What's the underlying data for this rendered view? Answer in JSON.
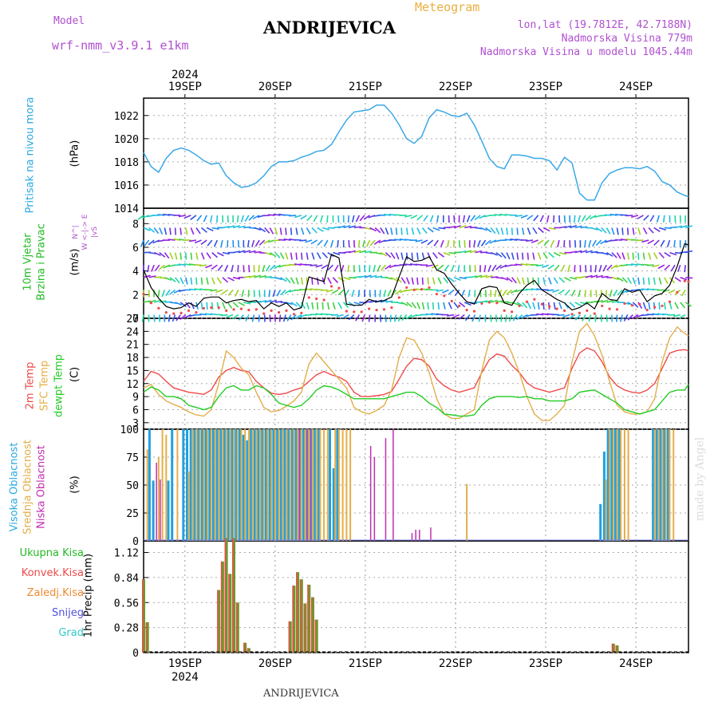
{
  "header": {
    "model_label": "Model",
    "model_name": "wrf-nmm_v3.9.1 e1km",
    "title": "ANDRIJEVICA",
    "meteogram_label": "Meteogram",
    "lonlat": "lon,lat (19.7812E, 42.7188N)",
    "elevation": "Nadmorska Visina 779m",
    "model_elevation": "Nadmorska Visina u modelu 1045.44m",
    "footer_title": "ANDRIJEVICA",
    "watermark": "made by Angel"
  },
  "colors": {
    "pressure": "#3aa8e8",
    "temp2m": "#ef4a4a",
    "sfc": "#e3ae4a",
    "dewpt": "#22cc22",
    "high_cloud": "#22a0e0",
    "mid_cloud": "#e3ae4a",
    "low_cloud": "#c030b0",
    "total_rain": "#6a9a2a",
    "conv_rain": "#ef4a4a",
    "freezing": "#f08a30",
    "snow": "#5050e0",
    "hail": "#30c8c8",
    "wind_line": "#000000",
    "wind_dots": "#ef4a4a"
  },
  "axis": {
    "top_year": "2024",
    "bottom_year": "2024",
    "days": [
      "19SEP",
      "20SEP",
      "21SEP",
      "22SEP",
      "23SEP",
      "24SEP"
    ],
    "day_hours": [
      0,
      24,
      48,
      72,
      96,
      120
    ],
    "hour_range": [
      -11,
      134
    ]
  },
  "panel_labels": {
    "pressure": [
      "Pritisak na nivou mora",
      "(hPa)"
    ],
    "wind": [
      "10m Vjetar",
      "Brzina i Pravac",
      "(m/s)"
    ],
    "wind_compass": [
      "N",
      "^",
      "|",
      "W <-|-> E",
      "|",
      "v",
      "S"
    ],
    "temp": [
      "2m Temp",
      "SFC Temp",
      "dewpt Temp",
      "(C)"
    ],
    "cloud": [
      "Visoka Oblacnost",
      "Srednja Oblacnost",
      "Niska Oblacnost",
      "(%)"
    ],
    "precip_legend": [
      "Ukupna Kisa",
      "Konvek.Kisa",
      "Zaledj.Kisa",
      "Snijeg",
      "Grad"
    ],
    "precip_unit": "1hr Precip (mm)"
  },
  "chart_data": [
    {
      "type": "line",
      "name": "pressure",
      "ylabel": "(hPa)",
      "ylim": [
        1014,
        1023.5
      ],
      "yticks": [
        1014,
        1016,
        1018,
        1020,
        1022
      ],
      "x": [
        -11,
        -9,
        -7,
        -5,
        -3,
        -1,
        1,
        3,
        5,
        7,
        9,
        11,
        13,
        15,
        17,
        19,
        21,
        23,
        25,
        27,
        29,
        31,
        33,
        35,
        37,
        39,
        41,
        43,
        45,
        47,
        49,
        51,
        53,
        55,
        57,
        59,
        61,
        63,
        65,
        67,
        69,
        71,
        73,
        75,
        77,
        79,
        81,
        83,
        85,
        87,
        89,
        91,
        93,
        95,
        97,
        99,
        101,
        103,
        105,
        107,
        109,
        111,
        113,
        115,
        117,
        119,
        121,
        123,
        125,
        127,
        129,
        131,
        133,
        134
      ],
      "y": [
        1018.8,
        1017.6,
        1017.1,
        1018.3,
        1019,
        1019.2,
        1019,
        1018.6,
        1018.1,
        1017.8,
        1017.9,
        1016.8,
        1016.2,
        1015.8,
        1015.9,
        1016.2,
        1016.8,
        1017.6,
        1018,
        1018,
        1018.1,
        1018.4,
        1018.6,
        1018.9,
        1019,
        1019.5,
        1020.6,
        1021.6,
        1022.3,
        1022.4,
        1022.5,
        1022.9,
        1022.9,
        1022.2,
        1021.2,
        1020,
        1019.6,
        1020.2,
        1021.8,
        1022.5,
        1022.3,
        1022,
        1021.9,
        1022.2,
        1021.2,
        1019.8,
        1018.3,
        1017.6,
        1017.4,
        1018.6,
        1018.6,
        1018.5,
        1018.3,
        1018.3,
        1018.1,
        1017.3,
        1018.4,
        1017.9,
        1015.3,
        1014.7,
        1014.7,
        1016.2,
        1017,
        1017.3,
        1017.5,
        1017.5,
        1017.4,
        1017.6,
        1017.2,
        1016.3,
        1016,
        1015.4,
        1015.1,
        1015
      ]
    },
    {
      "type": "line",
      "name": "wind",
      "ylabel": "(m/s)",
      "ylim": [
        0,
        9.3
      ],
      "yticks": [
        0,
        2,
        4,
        6,
        8
      ],
      "x": [
        -11,
        -9,
        -7,
        -5,
        -3,
        -1,
        1,
        3,
        5,
        7,
        9,
        11,
        13,
        15,
        17,
        19,
        21,
        23,
        25,
        27,
        29,
        31,
        33,
        35,
        37,
        39,
        41,
        43,
        45,
        47,
        49,
        51,
        53,
        55,
        57,
        59,
        61,
        63,
        65,
        67,
        69,
        71,
        73,
        75,
        77,
        79,
        81,
        83,
        85,
        87,
        89,
        91,
        93,
        95,
        97,
        99,
        101,
        103,
        105,
        107,
        109,
        111,
        113,
        115,
        117,
        119,
        121,
        123,
        125,
        127,
        129,
        131,
        133,
        134
      ],
      "y": [
        4.1,
        2.6,
        1.7,
        1.0,
        0.8,
        0.9,
        1.3,
        1.0,
        1.7,
        1.8,
        1.8,
        1.3,
        1.5,
        1.6,
        1.4,
        1.5,
        0.8,
        1.3,
        1.0,
        1.3,
        0.7,
        0.9,
        3.5,
        3.3,
        3.1,
        5.4,
        5.1,
        1.2,
        1.1,
        1.1,
        1.6,
        1.4,
        1.5,
        1.8,
        3.5,
        5.2,
        4.8,
        4.9,
        5.2,
        4.1,
        3.8,
        2.9,
        2.1,
        1.4,
        1.2,
        2.5,
        2.7,
        2.6,
        1.3,
        1.1,
        2.1,
        2.8,
        3.2,
        2.4,
        2.0,
        1.6,
        1.3,
        0.7,
        0.9,
        1.3,
        0.8,
        2.1,
        1.6,
        1.5,
        2.5,
        2.2,
        2.4,
        1.4,
        1.9,
        2.1,
        2.8,
        4.4,
        6.3,
        6.2
      ]
    },
    {
      "type": "line",
      "name": "temperature",
      "ylabel": "(C)",
      "ylim": [
        1.5,
        27
      ],
      "yticks": [
        3,
        6,
        9,
        12,
        15,
        18,
        21,
        24,
        27
      ],
      "x": [
        -11,
        -9,
        -7,
        -5,
        -3,
        -1,
        1,
        3,
        5,
        7,
        9,
        11,
        13,
        15,
        17,
        19,
        21,
        23,
        25,
        27,
        29,
        31,
        33,
        35,
        37,
        39,
        41,
        43,
        45,
        47,
        49,
        51,
        53,
        55,
        57,
        59,
        61,
        63,
        65,
        67,
        69,
        71,
        73,
        75,
        77,
        79,
        81,
        83,
        85,
        87,
        89,
        91,
        93,
        95,
        97,
        99,
        101,
        103,
        105,
        107,
        109,
        111,
        113,
        115,
        117,
        119,
        121,
        123,
        125,
        127,
        129,
        131,
        133,
        134
      ],
      "series": [
        {
          "name": "2m Temp",
          "values": [
            12.5,
            14.8,
            14.2,
            12.5,
            11.0,
            10.5,
            10.0,
            9.8,
            9.5,
            10.5,
            13.5,
            15.0,
            15.7,
            15.0,
            14.7,
            12.5,
            11.0,
            9.8,
            9.5,
            9.8,
            10.5,
            11.0,
            12.5,
            14.0,
            14.8,
            14.0,
            13.5,
            12.5,
            10.0,
            9.0,
            9.0,
            9.2,
            9.5,
            10.2,
            13.0,
            16.0,
            17.8,
            17.5,
            16.0,
            13.0,
            11.5,
            10.5,
            10.0,
            10.5,
            11.0,
            14.5,
            17.5,
            18.8,
            18.3,
            16.2,
            14.5,
            12.2,
            11.0,
            10.5,
            10.0,
            10.5,
            11.0,
            15.5,
            19.0,
            20.2,
            19.5,
            17.0,
            13.5,
            11.5,
            10.5,
            10.0,
            9.8,
            10.5,
            12.0,
            15.5,
            19.0,
            19.6,
            19.8,
            19.5
          ]
        },
        {
          "name": "SFC Temp",
          "values": [
            11.0,
            11.8,
            9.5,
            8.0,
            7.2,
            6.5,
            5.5,
            4.8,
            4.5,
            6.0,
            12.0,
            19.5,
            18.0,
            15.5,
            14.0,
            10.0,
            6.5,
            5.5,
            5.8,
            6.8,
            8.0,
            10.0,
            16.5,
            19.0,
            17.0,
            15.0,
            13.0,
            11.0,
            6.5,
            5.5,
            5.0,
            5.8,
            7.0,
            10.5,
            18.0,
            22.5,
            22.0,
            19.0,
            14.5,
            8.5,
            5.0,
            4.0,
            4.0,
            5.0,
            6.0,
            15.0,
            22.0,
            24.0,
            22.5,
            19.0,
            14.5,
            9.0,
            5.0,
            3.5,
            3.5,
            5.0,
            7.0,
            17.0,
            24.0,
            25.8,
            23.0,
            18.5,
            12.5,
            7.0,
            5.5,
            5.0,
            5.0,
            5.5,
            8.5,
            17.0,
            22.5,
            25.0,
            23.5,
            23.0
          ]
        },
        {
          "name": "dewpt Temp",
          "values": [
            10.0,
            11.2,
            10.5,
            9.0,
            9.0,
            8.5,
            7.0,
            6.5,
            6.0,
            6.5,
            9.0,
            11.0,
            11.5,
            10.5,
            10.5,
            11.5,
            11.0,
            9.5,
            7.5,
            7.0,
            6.5,
            7.0,
            8.5,
            10.5,
            11.5,
            11.2,
            10.5,
            9.5,
            8.5,
            8.5,
            8.5,
            8.5,
            8.5,
            9.0,
            9.5,
            10.0,
            10.0,
            9.0,
            7.5,
            6.5,
            5.0,
            4.8,
            4.5,
            4.5,
            4.8,
            7.0,
            8.5,
            9.0,
            9.0,
            9.0,
            8.8,
            9.0,
            8.5,
            8.5,
            8.0,
            8.0,
            8.0,
            8.5,
            10.0,
            10.3,
            10.5,
            9.5,
            8.5,
            7.5,
            6.0,
            5.5,
            5.0,
            5.5,
            6.0,
            8.0,
            10.0,
            10.5,
            10.5,
            11.8
          ]
        }
      ]
    },
    {
      "type": "bar",
      "name": "cloud",
      "ylabel": "(%)",
      "ylim": [
        0,
        100
      ],
      "yticks": [
        0,
        25,
        50,
        75,
        100
      ],
      "series": [
        {
          "name": "Visoka Oblacnost",
          "x": [
            -9,
            -8,
            -4,
            -3,
            0,
            1,
            2,
            3,
            4,
            5,
            6,
            7,
            8,
            9,
            10,
            11,
            12,
            13,
            14,
            15,
            16,
            17,
            18,
            19,
            20,
            21,
            22,
            23,
            24,
            25,
            26,
            27,
            28,
            29,
            30,
            31,
            32,
            33,
            34,
            35,
            36,
            39,
            40,
            41,
            111,
            112,
            113,
            114,
            115,
            116,
            125,
            126,
            127,
            128,
            129
          ],
          "values": [
            100,
            54,
            54,
            100,
            100,
            100,
            100,
            100,
            100,
            100,
            100,
            100,
            100,
            100,
            100,
            100,
            100,
            100,
            100,
            100,
            95,
            90,
            100,
            100,
            100,
            100,
            100,
            100,
            100,
            100,
            100,
            100,
            100,
            100,
            100,
            100,
            100,
            100,
            100,
            100,
            100,
            100,
            65,
            100,
            33,
            80,
            100,
            100,
            100,
            100,
            100,
            100,
            100,
            100,
            100
          ]
        },
        {
          "name": "Srednja Oblacnost",
          "x": [
            -10,
            -7,
            -6,
            -5,
            -2,
            1,
            2,
            3,
            4,
            5,
            6,
            7,
            8,
            9,
            10,
            11,
            12,
            13,
            14,
            15,
            16,
            17,
            18,
            19,
            20,
            21,
            22,
            23,
            24,
            25,
            26,
            27,
            28,
            29,
            30,
            31,
            32,
            33,
            34,
            35,
            36,
            37,
            38,
            40,
            41,
            42,
            43,
            44,
            75,
            112,
            113,
            114,
            115,
            116,
            117,
            118,
            125,
            126,
            127,
            128,
            129,
            130
          ],
          "values": [
            82,
            75,
            100,
            95,
            100,
            62,
            100,
            100,
            100,
            100,
            100,
            100,
            100,
            100,
            100,
            100,
            100,
            100,
            100,
            100,
            100,
            100,
            100,
            100,
            100,
            100,
            100,
            100,
            100,
            100,
            100,
            100,
            100,
            100,
            100,
            100,
            100,
            100,
            100,
            100,
            100,
            100,
            100,
            100,
            100,
            100,
            100,
            100,
            51,
            55,
            100,
            100,
            100,
            100,
            100,
            100,
            100,
            100,
            100,
            100,
            100,
            100
          ]
        },
        {
          "name": "Niska Oblacnost",
          "x": [
            -8,
            -7,
            30,
            32,
            33,
            49,
            50,
            53,
            55,
            60,
            61,
            62,
            65
          ],
          "values": [
            70,
            55,
            100,
            100,
            100,
            85,
            75,
            92,
            100,
            7,
            10,
            10,
            12
          ]
        }
      ]
    },
    {
      "type": "bar",
      "name": "precipitation",
      "ylabel": "1hr Precip (mm)",
      "ylim": [
        0,
        1.25
      ],
      "yticks": [
        0,
        0.28,
        0.56,
        0.84,
        1.12
      ],
      "series": [
        {
          "name": "Ukupna Kisa",
          "x": [
            -11,
            -10,
            9,
            10,
            11,
            12,
            13,
            14,
            15,
            16,
            17,
            18,
            19,
            28,
            29,
            30,
            31,
            32,
            33,
            34,
            35,
            36,
            37,
            114,
            115,
            116
          ],
          "values": [
            0.82,
            0.34,
            0.7,
            1.02,
            1.28,
            0.88,
            1.28,
            0.56,
            0,
            0.11,
            0.05,
            0,
            0,
            0.35,
            0.75,
            0.9,
            0.82,
            0.55,
            0.76,
            0.62,
            0.37,
            0,
            0,
            0.1,
            0.08,
            0
          ]
        }
      ]
    }
  ]
}
